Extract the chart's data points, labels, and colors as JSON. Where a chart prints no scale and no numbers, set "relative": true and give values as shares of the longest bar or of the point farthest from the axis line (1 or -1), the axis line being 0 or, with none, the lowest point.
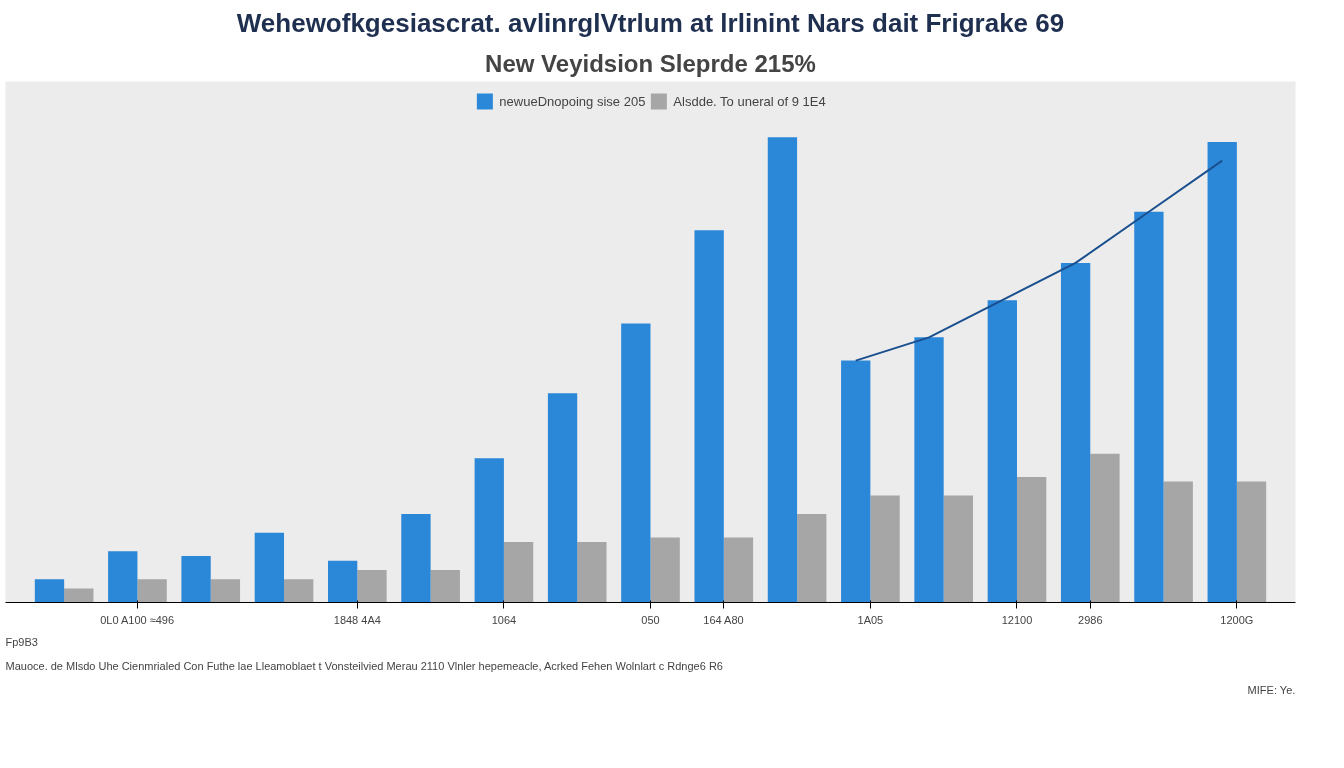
{
  "chart_data": {
    "type": "bar",
    "title": "Wehewofkgesiascrat. avlinrglVtrlum at lrlinint Nars dait Frigrake 69",
    "subtitle": "New Veyidsion Sleprde 215%",
    "categories": [
      null,
      "0L0 A100 ≈496",
      null,
      null,
      "1848 4A4",
      null,
      "1064",
      null,
      "050",
      "164 A80",
      null,
      "1A05",
      null,
      "12100",
      "2986",
      null,
      "1200G"
    ],
    "relative": true,
    "legend": "top",
    "series": [
      {
        "name": "Alsdde. To uneral of 9 1E4",
        "color": "#a6a6a6",
        "values": [
          0.03,
          0.05,
          0.05,
          0.05,
          0.07,
          0.07,
          0.13,
          0.13,
          0.14,
          0.14,
          0.19,
          0.23,
          0.23,
          0.27,
          0.32,
          0.26,
          0.26
        ]
      },
      {
        "name": "newueDnopoing sise 205",
        "color": "#2b87d8",
        "values": [
          0.05,
          0.11,
          0.1,
          0.15,
          0.09,
          0.19,
          0.31,
          0.45,
          0.6,
          0.8,
          1.0,
          0.52,
          0.57,
          0.65,
          0.73,
          0.84,
          0.99
        ]
      },
      {
        "type": "line",
        "color": "#1a4f8f",
        "values": [
          null,
          null,
          null,
          null,
          null,
          null,
          null,
          null,
          null,
          null,
          null,
          0.52,
          0.57,
          0.65,
          0.73,
          0.84,
          0.95
        ]
      }
    ],
    "annotations": [
      "Fp9B3",
      "Mauoce. de Mlsdo Uhe Cienmrialed Con Futhe lae Lleamoblaet t Vonsteilvied Merau 2110 Vlnler hepemeacle, Acrked Fehen Wolnlart c Rdnge6 R6",
      "MIFE: Ye."
    ]
  }
}
